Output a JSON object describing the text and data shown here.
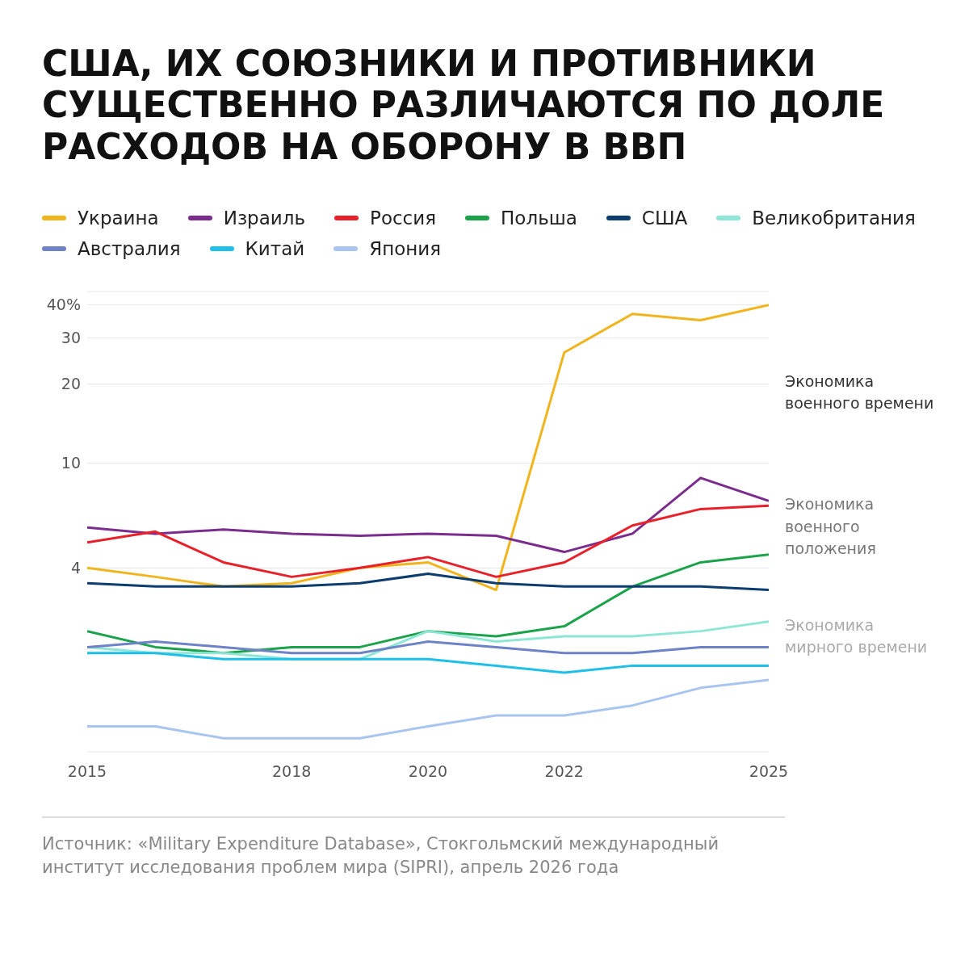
{
  "chart_data": {
    "type": "line",
    "title": "США, ИХ СОЮЗНИКИ И ПРОТИВНИКИ СУЩЕСТВЕННО РАЗЛИЧАЮТСЯ ПО ДОЛЕ РАСХОДОВ НА ОБОРОНУ В ВВП",
    "x": [
      2015,
      2016,
      2017,
      2018,
      2019,
      2020,
      2021,
      2022,
      2023,
      2024,
      2025
    ],
    "series": [
      {
        "name": "Украина",
        "color": "#f0b41c",
        "values": [
          4.0,
          3.7,
          3.4,
          3.5,
          4.0,
          4.2,
          3.3,
          26.4,
          37,
          35,
          40
        ]
      },
      {
        "name": "Израиль",
        "color": "#7b2d8e",
        "values": [
          5.7,
          5.4,
          5.6,
          5.4,
          5.3,
          5.4,
          5.3,
          4.6,
          5.4,
          8.8,
          7.2
        ]
      },
      {
        "name": "Россия",
        "color": "#e8202a",
        "values": [
          5.0,
          5.5,
          4.2,
          3.7,
          4.0,
          4.4,
          3.7,
          4.2,
          5.8,
          6.7,
          6.9
        ]
      },
      {
        "name": "Польша",
        "color": "#1aa34a",
        "values": [
          2.3,
          2.0,
          1.9,
          2.0,
          2.0,
          2.3,
          2.2,
          2.4,
          3.4,
          4.2,
          4.5
        ]
      },
      {
        "name": "США",
        "color": "#0d3c6e",
        "values": [
          3.5,
          3.4,
          3.4,
          3.4,
          3.5,
          3.8,
          3.5,
          3.4,
          3.4,
          3.4,
          3.3
        ]
      },
      {
        "name": "Великобритания",
        "color": "#8ee6d6",
        "values": [
          2.0,
          1.9,
          1.9,
          1.8,
          1.8,
          2.3,
          2.1,
          2.2,
          2.2,
          2.3,
          2.5
        ]
      },
      {
        "name": "Австралия",
        "color": "#6e82c8",
        "values": [
          2.0,
          2.1,
          2.0,
          1.9,
          1.9,
          2.1,
          2.0,
          1.9,
          1.9,
          2.0,
          2.0
        ]
      },
      {
        "name": "Китай",
        "color": "#1ec0ea",
        "values": [
          1.9,
          1.9,
          1.8,
          1.8,
          1.8,
          1.8,
          1.7,
          1.6,
          1.7,
          1.7,
          1.7
        ]
      },
      {
        "name": "Япония",
        "color": "#a8c4f0",
        "values": [
          1.0,
          1.0,
          0.9,
          0.9,
          0.9,
          1.0,
          1.1,
          1.1,
          1.2,
          1.4,
          1.5
        ]
      }
    ],
    "log": "y",
    "xlim": [
      2015,
      2025
    ],
    "xticks": [
      2015,
      2018,
      2020,
      2022,
      2025
    ],
    "ylim": [
      0.8,
      45
    ],
    "yticks": [
      4,
      10,
      20,
      30,
      {
        "value": 40,
        "label": "40%"
      }
    ],
    "grid": "y",
    "legend": "top",
    "annotations": [
      "Экономика военного времени",
      "Экономика военного положения",
      "Экономика мирного времени",
      "Источник: «Military Expenditure Database», Стокгольмский международный институт исследования проблем мира (SIPRI), апрель 2026 года"
    ]
  }
}
